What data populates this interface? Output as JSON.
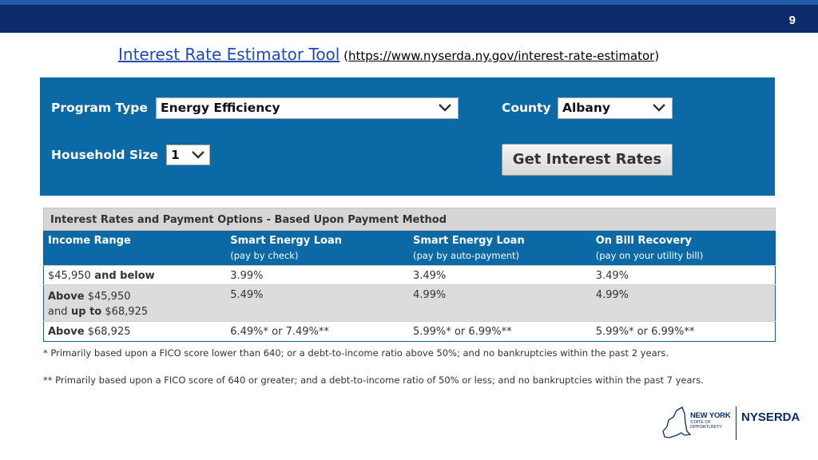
{
  "page_number": "9",
  "title": {
    "link_text": "Interest Rate Estimator Tool",
    "open_paren": " (",
    "url": "https://www.nyserda.ny.gov/interest-rate-estimator",
    "close_paren": ")"
  },
  "form": {
    "program_type_label": "Program Type",
    "program_type_value": "Energy Efficiency",
    "county_label": "County",
    "county_value": "Albany",
    "household_size_label": "Household Size",
    "household_size_value": "1",
    "submit_label": "Get Interest Rates"
  },
  "rates": {
    "title": "Interest Rates and Payment Options - Based Upon Payment Method",
    "headers": [
      {
        "main": "Income Range",
        "sub": ""
      },
      {
        "main": "Smart Energy Loan",
        "sub": "(pay by check)"
      },
      {
        "main": "Smart Energy Loan",
        "sub": "(pay by auto-payment)"
      },
      {
        "main": "On Bill Recovery",
        "sub": "(pay on your utility bill)"
      }
    ],
    "rows": [
      {
        "range_a": "$45,950",
        "range_b": " and below",
        "range_c": "",
        "range_d": "",
        "check": "3.99%",
        "auto": "3.49%",
        "obr": "3.49%"
      },
      {
        "range_a": "Above",
        "range_b": " $45,950",
        "range_c": "and",
        "range_d": " $68,925",
        "range_mid": " up to",
        "check": "5.49%",
        "auto": "4.99%",
        "obr": "4.99%"
      },
      {
        "range_a": "Above",
        "range_b": " $68,925",
        "range_c": "",
        "range_d": "",
        "check": "6.49%* or 7.49%**",
        "auto": "5.99%* or 6.99%**",
        "obr": "5.99%* or 6.99%**"
      }
    ]
  },
  "notes": [
    "* Primarily based upon a FICO score lower than 640; or a debt-to-income ratio above 50%; and no bankruptcies within the past 2 years.",
    "** Primarily based upon a FICO score of 640 or greater; and a debt-to-income ratio of 50% or less; and no bankruptcies within the past 7 years."
  ],
  "logo": {
    "new_york": "NEW YORK",
    "state_of": "STATE OF",
    "opportunity": "OPPORTUNITY.",
    "nyserda": "NYSERDA"
  },
  "colors": {
    "header_bar": "#0b2b6b",
    "panel_blue": "#0b6aa6",
    "link_blue": "#1f4bb5"
  }
}
